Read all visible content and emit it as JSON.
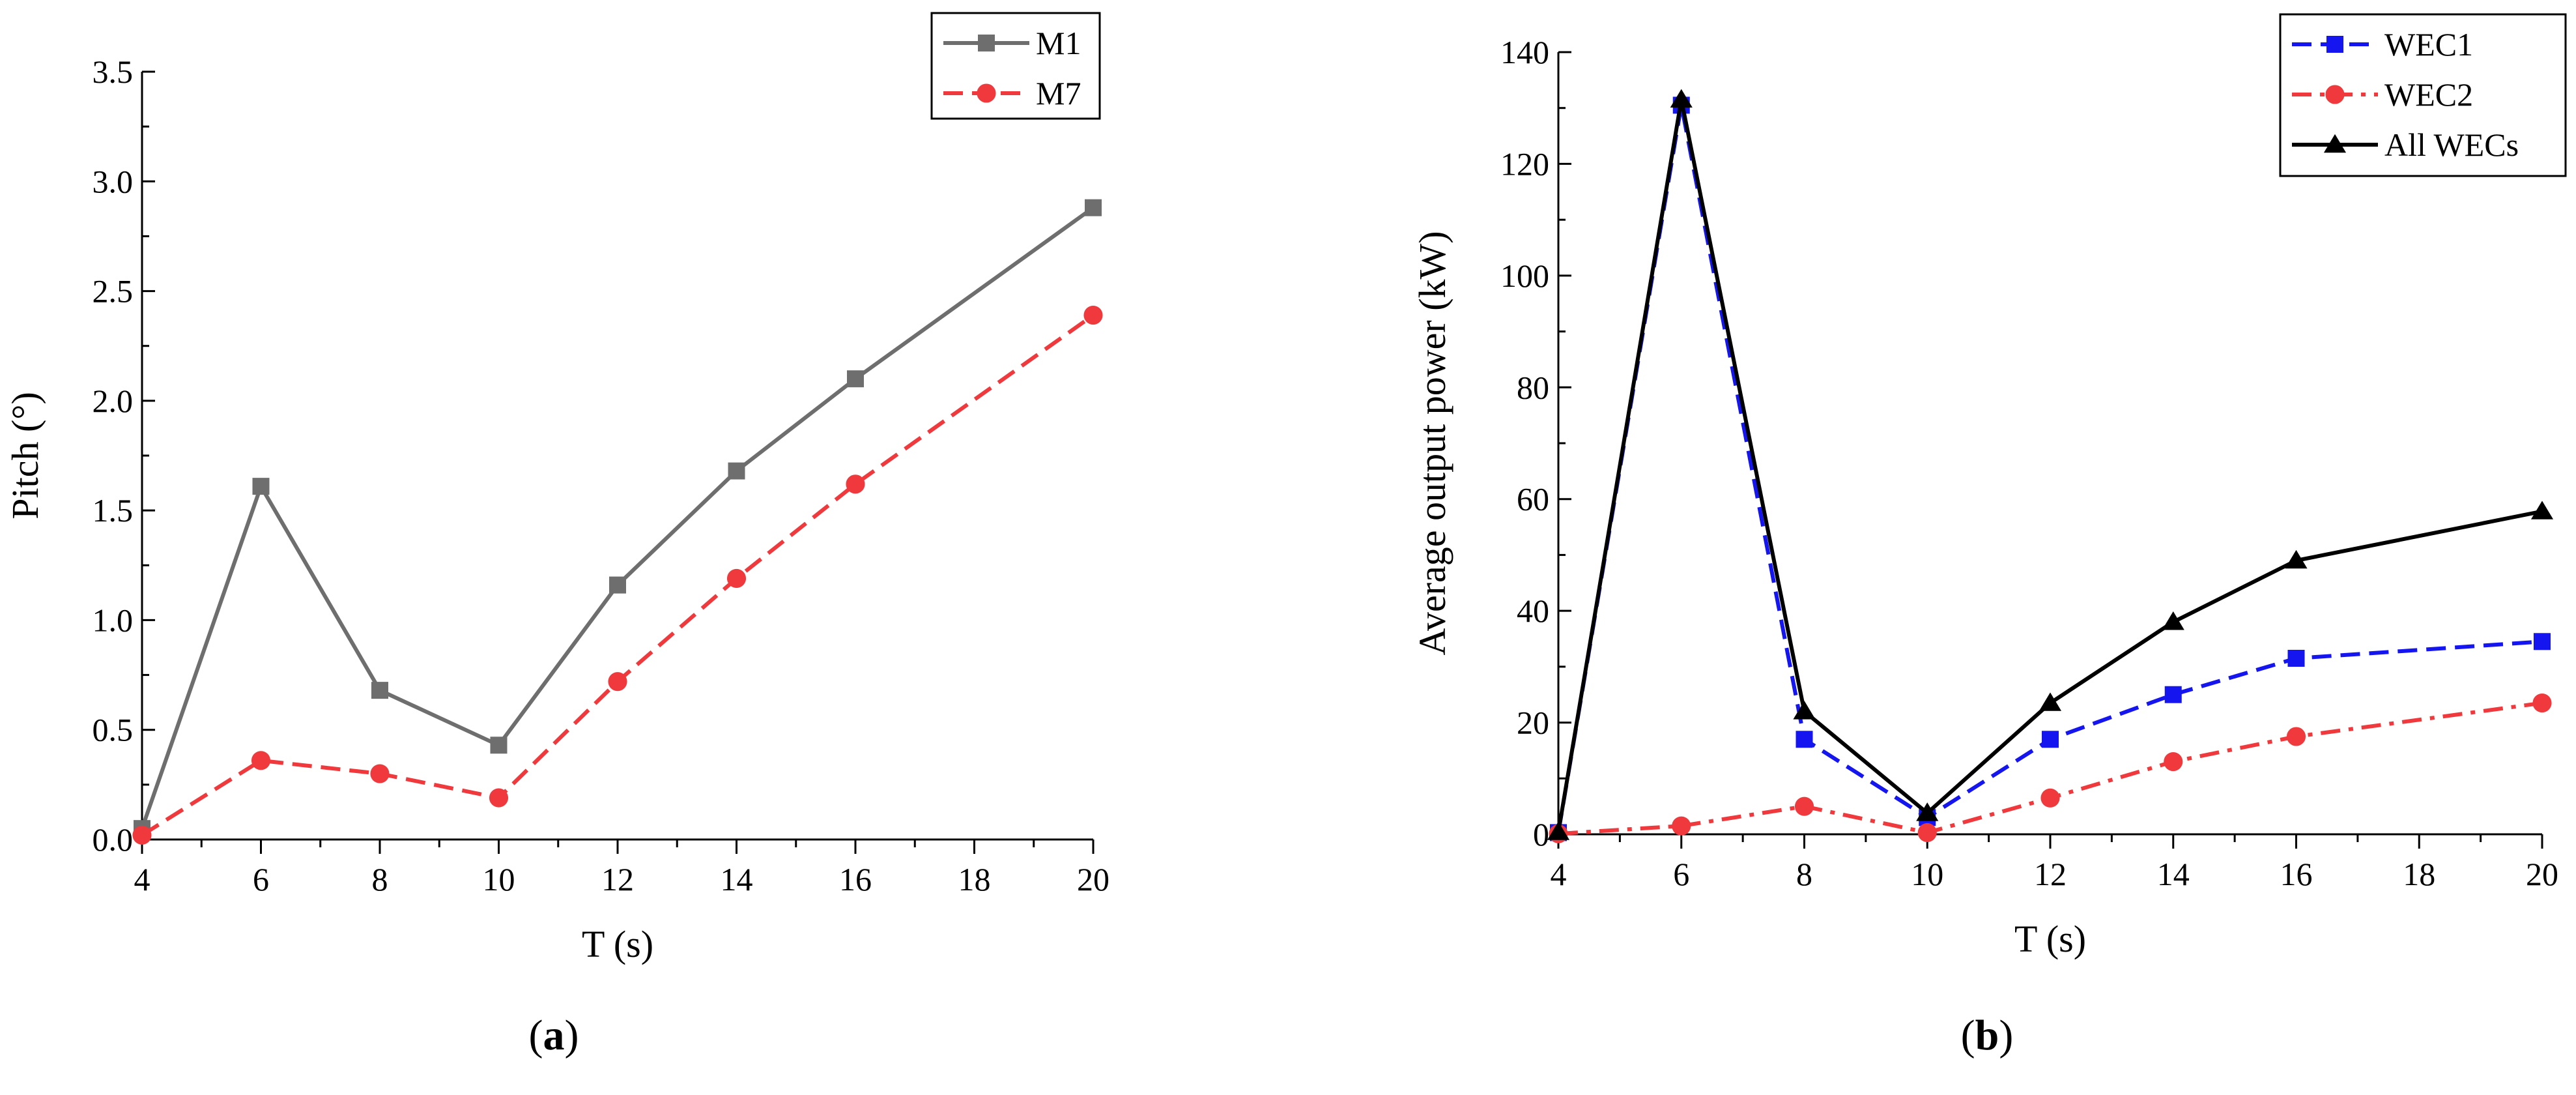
{
  "chart_data": [
    {
      "type": "line",
      "panel_label": "(a)",
      "panel_letter": "a",
      "xlabel": "T (s)",
      "ylabel": "Pitch (°)",
      "xlim": [
        4,
        20
      ],
      "ylim": [
        0,
        3.5
      ],
      "xticks": [
        "4",
        "6",
        "8",
        "10",
        "12",
        "14",
        "16",
        "18",
        "20"
      ],
      "yticks": [
        "0.0",
        "0.5",
        "1.0",
        "1.5",
        "2.0",
        "2.5",
        "3.0",
        "3.5"
      ],
      "legend_position": "top-right",
      "grid": false,
      "x": [
        4,
        6,
        8,
        10,
        12,
        14,
        16,
        20
      ],
      "series": [
        {
          "name": "M1",
          "color": "#6e6e6e",
          "marker": "square",
          "dash": "solid",
          "values": [
            0.05,
            1.61,
            0.68,
            0.43,
            1.16,
            1.68,
            2.1,
            2.88
          ]
        },
        {
          "name": "M7",
          "color": "#f0393c",
          "marker": "circle",
          "dash": "dashed",
          "values": [
            0.02,
            0.36,
            0.3,
            0.19,
            0.72,
            1.19,
            1.62,
            2.39
          ]
        }
      ]
    },
    {
      "type": "line",
      "panel_label": "(b)",
      "panel_letter": "b",
      "xlabel": "T (s)",
      "ylabel": "Average output power (kW)",
      "xlim": [
        4,
        20
      ],
      "ylim": [
        0,
        140
      ],
      "xticks": [
        "4",
        "6",
        "8",
        "10",
        "12",
        "14",
        "16",
        "18",
        "20"
      ],
      "yticks": [
        "0",
        "20",
        "40",
        "60",
        "80",
        "100",
        "120",
        "140"
      ],
      "legend_position": "top-right",
      "grid": false,
      "x": [
        4,
        6,
        8,
        10,
        12,
        14,
        16,
        20
      ],
      "series": [
        {
          "name": "WEC1",
          "color": "#1515f0",
          "marker": "square",
          "dash": "dashed",
          "values": [
            0.3,
            130.5,
            17.0,
            3.0,
            17.0,
            25.0,
            31.5,
            34.5
          ]
        },
        {
          "name": "WEC2",
          "color": "#f0393c",
          "marker": "circle",
          "dash": "dashdot",
          "values": [
            0.1,
            1.5,
            5.0,
            0.3,
            6.5,
            13.0,
            17.5,
            23.5
          ]
        },
        {
          "name": "All WECs",
          "color": "#000000",
          "marker": "triangle",
          "dash": "solid",
          "values": [
            0.4,
            131.5,
            22.0,
            3.8,
            23.5,
            38.0,
            49.0,
            57.8
          ]
        }
      ]
    }
  ]
}
